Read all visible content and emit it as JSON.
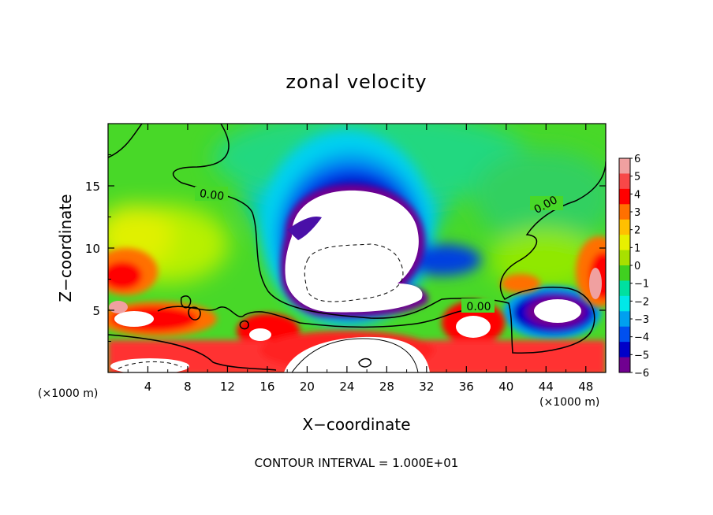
{
  "chart_data": {
    "type": "heatmap",
    "title": "zonal velocity",
    "xlabel": "X−coordinate",
    "ylabel": "Z−coordinate",
    "x_unit_left": "(×1000 m)",
    "x_unit_right": "(×1000 m)",
    "footer": "CONTOUR INTERVAL = 1.000E+01",
    "xlim": [
      0,
      50
    ],
    "ylim": [
      0,
      20
    ],
    "x_ticks": [
      4,
      8,
      12,
      16,
      20,
      24,
      28,
      32,
      36,
      40,
      44,
      48
    ],
    "x_tick_labels": [
      "4",
      "8",
      "12",
      "16",
      "20",
      "24",
      "28",
      "32",
      "36",
      "40",
      "44",
      "48"
    ],
    "y_ticks": [
      5,
      10,
      15
    ],
    "y_tick_labels": [
      "5",
      "10",
      "15"
    ],
    "colorbar": {
      "levels": [
        6,
        5,
        4,
        3,
        2,
        1,
        0,
        -1,
        -2,
        -3,
        -4,
        -5,
        -6
      ],
      "labels": [
        "6",
        "5",
        "4",
        "3",
        "2",
        "1",
        "0",
        "−1",
        "−2",
        "−3",
        "−4",
        "−5",
        "−6"
      ],
      "colors": [
        "#f0a0a0",
        "#f84848",
        "#ff0000",
        "#ff7000",
        "#ffc000",
        "#e8f000",
        "#a8e000",
        "#40d020",
        "#00e0a0",
        "#00e8e8",
        "#00a0f0",
        "#0050f0",
        "#0000c8",
        "#700090"
      ]
    },
    "contour_labels": [
      {
        "text": "0.00",
        "x": 8.6,
        "z": 14.3
      },
      {
        "text": "0.00",
        "x": 44.2,
        "z": 13.3
      },
      {
        "text": "0.00",
        "x": 37.2,
        "z": 5.2
      }
    ],
    "features": [
      {
        "name": "upper negative core",
        "x": 26,
        "z": 10.5,
        "sign": "negative",
        "peak": -6
      },
      {
        "name": "right negative cell",
        "x": 44.5,
        "z": 5,
        "sign": "negative",
        "peak": -6
      },
      {
        "name": "near-surface positive jet",
        "x": 24,
        "z": 2.5,
        "sign": "positive",
        "peak": 6
      },
      {
        "name": "left positive band",
        "x": 4,
        "z": 5,
        "sign": "positive",
        "peak": 6
      },
      {
        "name": "right edge positive",
        "x": 49.5,
        "z": 8,
        "sign": "positive",
        "peak": 6
      }
    ]
  }
}
